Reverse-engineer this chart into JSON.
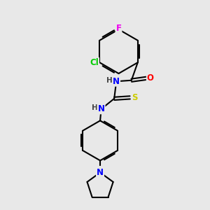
{
  "background_color": "#e8e8e8",
  "bond_color": "#000000",
  "atom_colors": {
    "F": "#ee00ee",
    "Cl": "#00cc00",
    "O": "#ff0000",
    "S": "#cccc00",
    "N": "#0000ff",
    "H": "#444444",
    "C": "#000000"
  },
  "font_size_atoms": 8.5,
  "figsize": [
    3.0,
    3.0
  ],
  "dpi": 100
}
